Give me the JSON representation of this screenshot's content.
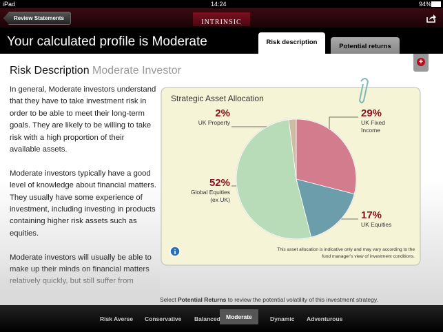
{
  "status_bar": {
    "device": "iPad",
    "time": "14:24",
    "battery": "94%"
  },
  "header": {
    "back_button": "Review Statements",
    "logo": "INTRINSIC"
  },
  "title": "Your calculated profile is Moderate",
  "tabs": [
    "Risk description",
    "Potential returns"
  ],
  "content": {
    "heading": "Risk Description",
    "subheading": "Moderate Investor",
    "paragraphs": [
      "In general, Moderate investors understand that they have to take investment risk in order to be able to meet their long-term goals. They are likely to be willing to take risk with a high proportion of their available assets.",
      "Moderate investors typically have a good level of knowledge about financial matters. They usually have some experience of investment, including investing in products containing higher risk assets such as equities.",
      "Moderate investors will usually be able to make up their minds on financial matters relatively quickly, but still suffer from"
    ]
  },
  "chart_data": {
    "type": "pie",
    "title": "Strategic Asset Allocation",
    "categories": [
      "UK Fixed Income",
      "UK Equities",
      "Global Equities (ex UK)",
      "UK Property"
    ],
    "values": [
      29,
      17,
      52,
      2
    ],
    "value_labels": [
      "29%",
      "17%",
      "52%",
      "2%"
    ],
    "colors": [
      "#d27c8e",
      "#6b9eaa",
      "#b9dcb8",
      "#cdbba3"
    ],
    "note": "This asset allocation is indicative only and may vary according to the fund manager's view of investment conditions."
  },
  "footer_note": {
    "prefix": "Select",
    "bold": "Potential Returns",
    "suffix": "to review the potential volatility of this investment strategy."
  },
  "nav": {
    "items": [
      "Risk Averse",
      "Conservative",
      "Balanced",
      "Moderate",
      "Dynamic",
      "Adventurous"
    ],
    "active": 3
  }
}
